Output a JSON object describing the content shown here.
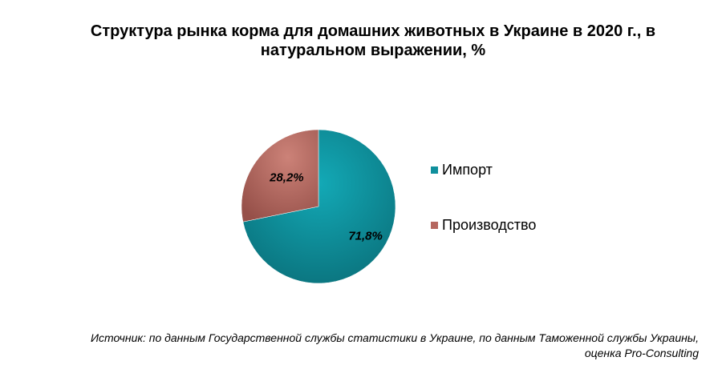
{
  "chart_data": {
    "type": "pie",
    "title_line1": "Структура  рынка корма для домашних  животных  в Украине  в 2020 г., в",
    "title_line2": "натуральном  выражении,  %",
    "slices": [
      {
        "name": "Импорт",
        "value": 71.8,
        "label": "71,8%",
        "color": "#0f8f9c"
      },
      {
        "name": "Производство",
        "value": 28.2,
        "label": "28,2%",
        "color": "#b5675f"
      }
    ],
    "legend_position": "right"
  },
  "source": {
    "line1": "Источник: по данным Государственной службы статистики в Украине, по данным Таможенной службы Украины,",
    "line2": "оценка Pro-Consulting"
  }
}
